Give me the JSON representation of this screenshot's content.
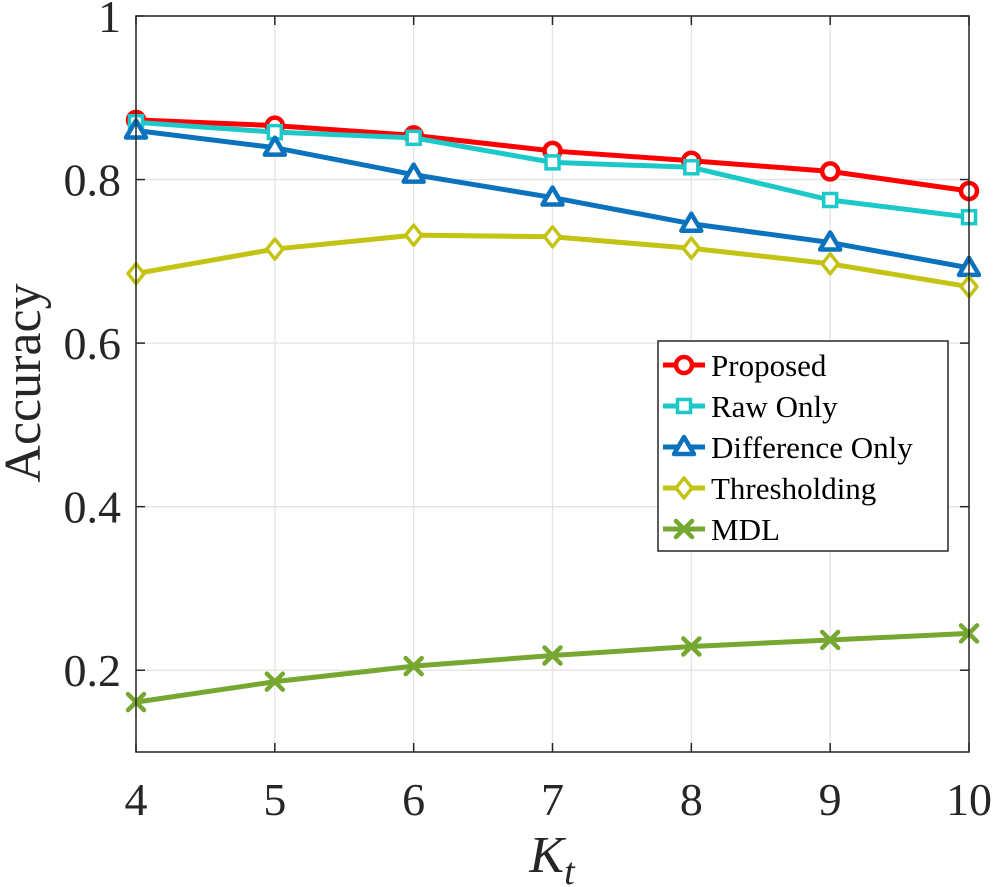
{
  "chart_data": {
    "type": "line",
    "title": "",
    "xlabel": "K",
    "xlabel_subscript": "t",
    "ylabel": "Accuracy",
    "x": [
      4,
      5,
      6,
      7,
      8,
      9,
      10
    ],
    "xlim": [
      4,
      10
    ],
    "ylim": [
      0.1,
      1.0
    ],
    "xticks": [
      4,
      5,
      6,
      7,
      8,
      9,
      10
    ],
    "xtick_labels": [
      "4",
      "5",
      "6",
      "7",
      "8",
      "9",
      "10"
    ],
    "yticks": [
      0.2,
      0.4,
      0.6,
      0.8,
      1.0
    ],
    "ytick_labels": [
      "0.2",
      "0.4",
      "0.6",
      "0.8",
      "1"
    ],
    "grid": true,
    "legend_position": "right",
    "series": [
      {
        "name": "Proposed",
        "color": "#ff0000",
        "marker": "circle",
        "values": [
          0.873,
          0.866,
          0.854,
          0.835,
          0.823,
          0.81,
          0.786
        ]
      },
      {
        "name": "Raw Only",
        "color": "#1cc8c8",
        "marker": "square",
        "values": [
          0.87,
          0.858,
          0.851,
          0.821,
          0.815,
          0.775,
          0.754
        ]
      },
      {
        "name": "Difference Only",
        "color": "#0b72bd",
        "marker": "triangle",
        "values": [
          0.86,
          0.839,
          0.806,
          0.778,
          0.746,
          0.723,
          0.692
        ]
      },
      {
        "name": "Thresholding",
        "color": "#c3c313",
        "marker": "diamond",
        "values": [
          0.685,
          0.715,
          0.732,
          0.73,
          0.716,
          0.697,
          0.669
        ]
      },
      {
        "name": "MDL",
        "color": "#76a831",
        "marker": "x",
        "values": [
          0.161,
          0.186,
          0.205,
          0.218,
          0.229,
          0.237,
          0.245
        ]
      }
    ]
  }
}
